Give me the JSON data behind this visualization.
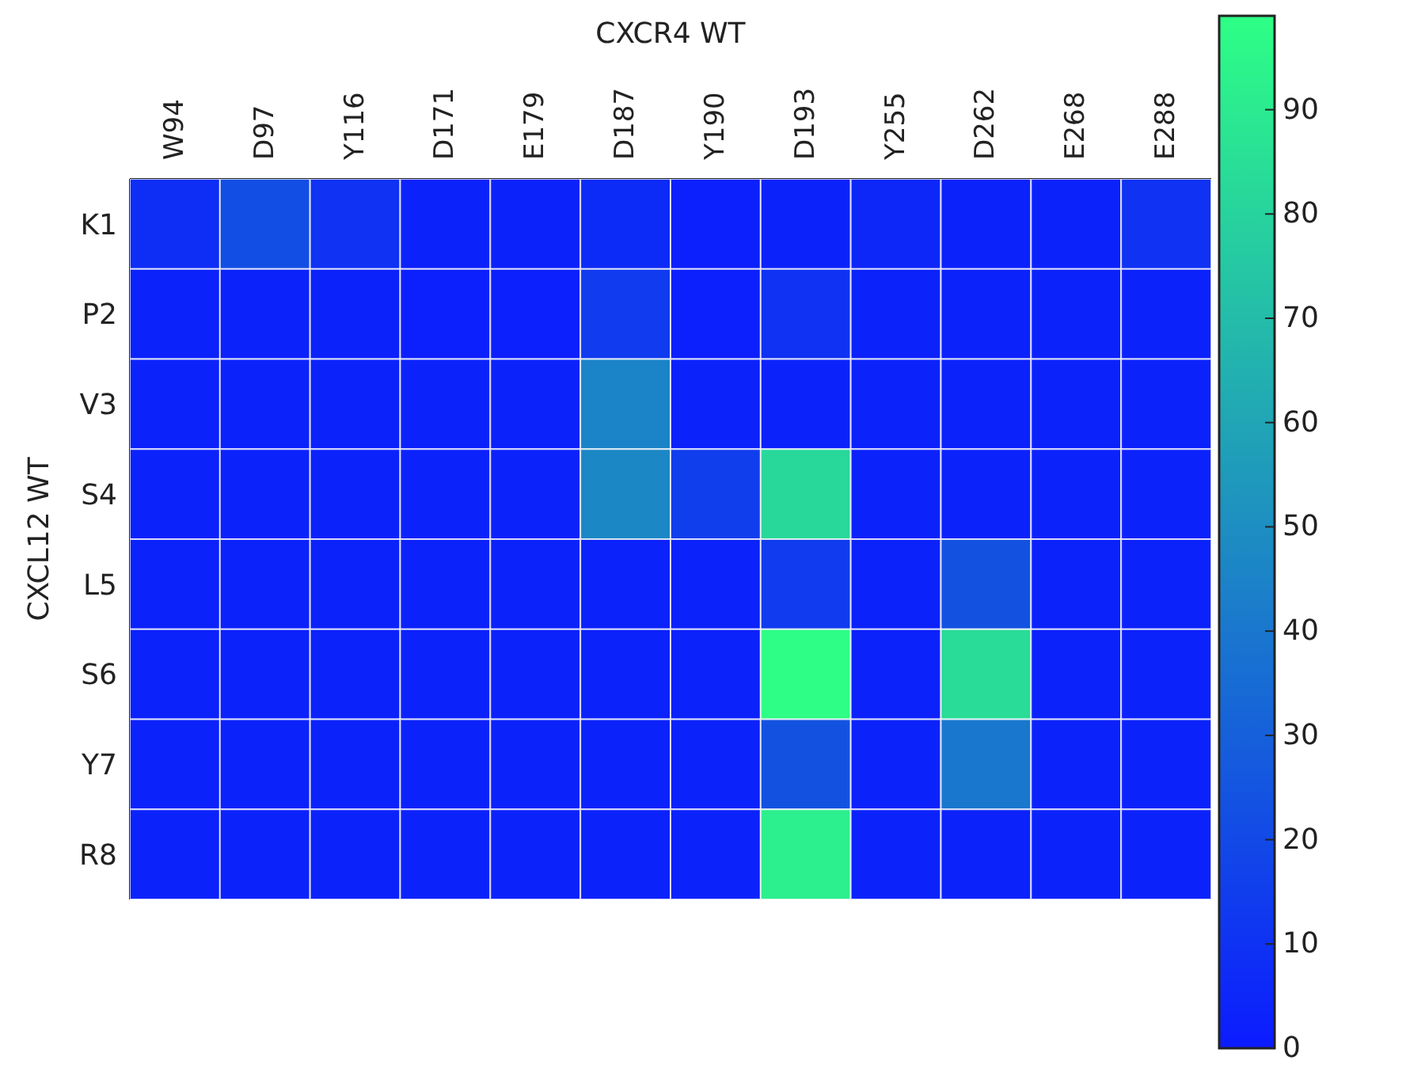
{
  "chart_data": {
    "type": "heatmap",
    "xlabel": "CXCR4 WT",
    "ylabel": "CXCL12 WT",
    "categories": [
      "W94",
      "D97",
      "Y116",
      "D171",
      "E179",
      "D187",
      "Y190",
      "D193",
      "Y255",
      "D262",
      "E268",
      "E288"
    ],
    "y_categories": [
      "K1",
      "P2",
      "V3",
      "S4",
      "L5",
      "S6",
      "Y7",
      "R8"
    ],
    "cells": [
      [
        8,
        22,
        10,
        3,
        3,
        7,
        2,
        3,
        5,
        3,
        3,
        10
      ],
      [
        3,
        3,
        3,
        2,
        2,
        14,
        2,
        10,
        3,
        3,
        3,
        3
      ],
      [
        3,
        3,
        3,
        3,
        3,
        45,
        3,
        3,
        3,
        3,
        3,
        3
      ],
      [
        3,
        3,
        3,
        3,
        3,
        47,
        15,
        82,
        3,
        3,
        3,
        3
      ],
      [
        3,
        3,
        3,
        3,
        3,
        3,
        3,
        14,
        3,
        24,
        3,
        3
      ],
      [
        3,
        3,
        3,
        3,
        3,
        3,
        3,
        98,
        3,
        84,
        3,
        3
      ],
      [
        3,
        3,
        3,
        3,
        3,
        3,
        3,
        24,
        3,
        40,
        3,
        3
      ],
      [
        3,
        3,
        3,
        3,
        3,
        3,
        3,
        92,
        3,
        3,
        3,
        3
      ]
    ],
    "clim": [
      0,
      99
    ],
    "cticks": [
      0,
      10,
      20,
      30,
      40,
      50,
      60,
      70,
      80,
      90
    ]
  }
}
